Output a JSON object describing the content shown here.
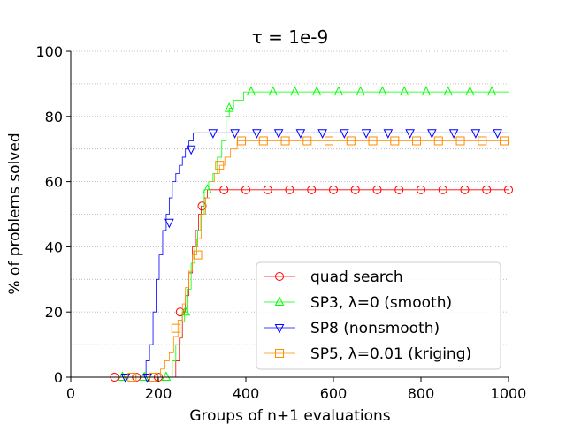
{
  "chart_data": {
    "type": "line",
    "title": "τ = 1e-9",
    "xlabel": "Groups of n+1 evaluations",
    "ylabel": "% of problems solved",
    "xlim": [
      0,
      1000
    ],
    "ylim": [
      0,
      100
    ],
    "xticks": [
      0,
      200,
      400,
      600,
      800,
      1000
    ],
    "yticks": [
      0,
      20,
      40,
      60,
      80,
      100
    ],
    "grid": "horizontal-dotted",
    "legend_position": "lower-right",
    "series": [
      {
        "name": "quad search",
        "color": "#ff0000",
        "marker": "circle",
        "steps": [
          [
            0,
            0
          ],
          [
            230,
            0
          ],
          [
            240,
            5
          ],
          [
            248,
            12
          ],
          [
            255,
            20
          ],
          [
            262,
            25
          ],
          [
            270,
            32
          ],
          [
            278,
            40
          ],
          [
            285,
            45
          ],
          [
            292,
            50
          ],
          [
            298,
            52.5
          ],
          [
            305,
            55
          ],
          [
            312,
            57.5
          ],
          [
            1000,
            57.5
          ]
        ],
        "markers": [
          [
            100,
            0
          ],
          [
            150,
            0
          ],
          [
            200,
            0
          ],
          [
            250,
            20
          ],
          [
            300,
            52.5
          ],
          [
            350,
            57.5
          ],
          [
            400,
            57.5
          ],
          [
            450,
            57.5
          ],
          [
            500,
            57.5
          ],
          [
            550,
            57.5
          ],
          [
            600,
            57.5
          ],
          [
            650,
            57.5
          ],
          [
            700,
            57.5
          ],
          [
            750,
            57.5
          ],
          [
            800,
            57.5
          ],
          [
            850,
            57.5
          ],
          [
            900,
            57.5
          ],
          [
            950,
            57.5
          ],
          [
            1000,
            57.5
          ]
        ]
      },
      {
        "name": "SP3, λ=0 (smooth)",
        "color": "#00ff00",
        "marker": "triangle-up",
        "steps": [
          [
            0,
            0
          ],
          [
            225,
            0
          ],
          [
            232,
            5
          ],
          [
            240,
            10
          ],
          [
            250,
            17
          ],
          [
            260,
            20
          ],
          [
            268,
            27
          ],
          [
            275,
            35
          ],
          [
            283,
            40
          ],
          [
            290,
            45
          ],
          [
            297,
            50
          ],
          [
            305,
            57.5
          ],
          [
            315,
            60
          ],
          [
            325,
            62.5
          ],
          [
            335,
            67.5
          ],
          [
            345,
            72.5
          ],
          [
            355,
            80
          ],
          [
            362,
            82.5
          ],
          [
            372,
            85
          ],
          [
            395,
            87.5
          ],
          [
            1000,
            87.5
          ]
        ],
        "markers": [
          [
            118,
            0
          ],
          [
            168,
            0
          ],
          [
            218,
            0
          ],
          [
            262,
            20
          ],
          [
            312,
            57.5
          ],
          [
            362,
            82.5
          ],
          [
            412,
            87.5
          ],
          [
            462,
            87.5
          ],
          [
            512,
            87.5
          ],
          [
            562,
            87.5
          ],
          [
            612,
            87.5
          ],
          [
            662,
            87.5
          ],
          [
            712,
            87.5
          ],
          [
            762,
            87.5
          ],
          [
            812,
            87.5
          ],
          [
            862,
            87.5
          ],
          [
            912,
            87.5
          ],
          [
            962,
            87.5
          ]
        ]
      },
      {
        "name": "SP8 (nonsmooth)",
        "color": "#0000ff",
        "marker": "triangle-down",
        "steps": [
          [
            0,
            0
          ],
          [
            165,
            0
          ],
          [
            172,
            5
          ],
          [
            180,
            10
          ],
          [
            188,
            20
          ],
          [
            195,
            30
          ],
          [
            202,
            37.5
          ],
          [
            210,
            45
          ],
          [
            218,
            50
          ],
          [
            225,
            55
          ],
          [
            232,
            60
          ],
          [
            240,
            62.5
          ],
          [
            248,
            65
          ],
          [
            255,
            67.5
          ],
          [
            262,
            70
          ],
          [
            270,
            72.5
          ],
          [
            280,
            75
          ],
          [
            1000,
            75
          ]
        ],
        "markers": [
          [
            125,
            0
          ],
          [
            175,
            0
          ],
          [
            225,
            47.5
          ],
          [
            275,
            70
          ],
          [
            325,
            75
          ],
          [
            375,
            75
          ],
          [
            425,
            75
          ],
          [
            475,
            75
          ],
          [
            525,
            75
          ],
          [
            575,
            75
          ],
          [
            625,
            75
          ],
          [
            675,
            75
          ],
          [
            725,
            75
          ],
          [
            775,
            75
          ],
          [
            825,
            75
          ],
          [
            875,
            75
          ],
          [
            925,
            75
          ],
          [
            975,
            75
          ]
        ]
      },
      {
        "name": "SP5, λ=0.01 (kriging)",
        "color": "#ff8c00",
        "marker": "square",
        "steps": [
          [
            0,
            0
          ],
          [
            195,
            0
          ],
          [
            205,
            2.5
          ],
          [
            215,
            5
          ],
          [
            225,
            7.5
          ],
          [
            235,
            12.5
          ],
          [
            245,
            17.5
          ],
          [
            255,
            22.5
          ],
          [
            262,
            27.5
          ],
          [
            270,
            32.5
          ],
          [
            278,
            37.5
          ],
          [
            288,
            42.5
          ],
          [
            298,
            50
          ],
          [
            308,
            55
          ],
          [
            318,
            60
          ],
          [
            328,
            62.5
          ],
          [
            340,
            65
          ],
          [
            352,
            67.5
          ],
          [
            365,
            70
          ],
          [
            380,
            72.5
          ],
          [
            1000,
            72.5
          ]
        ],
        "markers": [
          [
            140,
            0
          ],
          [
            190,
            0
          ],
          [
            240,
            15
          ],
          [
            290,
            37.5
          ],
          [
            340,
            65
          ],
          [
            390,
            72.5
          ],
          [
            440,
            72.5
          ],
          [
            490,
            72.5
          ],
          [
            540,
            72.5
          ],
          [
            590,
            72.5
          ],
          [
            640,
            72.5
          ],
          [
            690,
            72.5
          ],
          [
            740,
            72.5
          ],
          [
            790,
            72.5
          ],
          [
            840,
            72.5
          ],
          [
            890,
            72.5
          ],
          [
            940,
            72.5
          ],
          [
            990,
            72.5
          ]
        ]
      }
    ]
  }
}
